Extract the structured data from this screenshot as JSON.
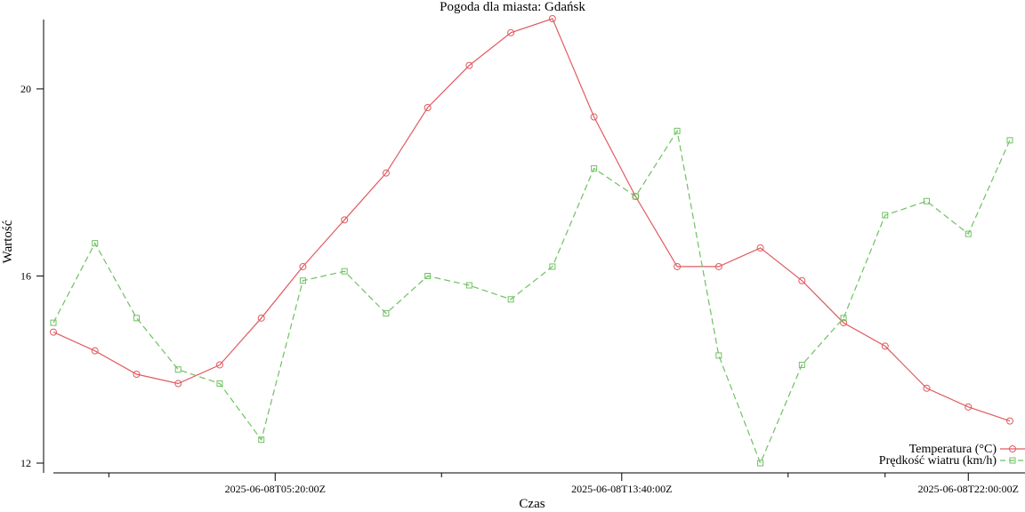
{
  "chart_data": {
    "type": "line",
    "title": "Pogoda dla miasta: Gdańsk",
    "xlabel": "Czas",
    "ylabel": "Wartość",
    "ylim": [
      12,
      21.5
    ],
    "yticks": [
      12,
      16,
      20
    ],
    "xtick_labels": [
      "2025-06-08T05:20:00Z",
      "2025-06-08T13:40:00Z",
      "2025-06-08T22:00:00Z"
    ],
    "grid": false,
    "legend_position": "bottom-right",
    "x": [
      "2025-06-08T00:00:00Z",
      "2025-06-08T01:00:00Z",
      "2025-06-08T02:00:00Z",
      "2025-06-08T03:00:00Z",
      "2025-06-08T04:00:00Z",
      "2025-06-08T05:00:00Z",
      "2025-06-08T06:00:00Z",
      "2025-06-08T07:00:00Z",
      "2025-06-08T08:00:00Z",
      "2025-06-08T09:00:00Z",
      "2025-06-08T10:00:00Z",
      "2025-06-08T11:00:00Z",
      "2025-06-08T12:00:00Z",
      "2025-06-08T13:00:00Z",
      "2025-06-08T14:00:00Z",
      "2025-06-08T15:00:00Z",
      "2025-06-08T16:00:00Z",
      "2025-06-08T17:00:00Z",
      "2025-06-08T18:00:00Z",
      "2025-06-08T19:00:00Z",
      "2025-06-08T20:00:00Z",
      "2025-06-08T21:00:00Z",
      "2025-06-08T22:00:00Z",
      "2025-06-08T23:00:00Z"
    ],
    "series": [
      {
        "name": "Temperatura (°C)",
        "color": "#e05a5f",
        "marker": "circle",
        "dash": "solid",
        "values": [
          14.8,
          14.4,
          13.9,
          13.7,
          14.1,
          15.1,
          16.2,
          17.2,
          18.2,
          19.6,
          20.5,
          21.2,
          21.5,
          19.4,
          17.7,
          16.2,
          16.2,
          16.6,
          15.9,
          15.0,
          14.5,
          13.6,
          13.2,
          12.9
        ]
      },
      {
        "name": "Prędkość wiatru (km/h)",
        "color": "#6fc162",
        "marker": "square",
        "dash": "dashed",
        "values": [
          15.0,
          16.7,
          15.1,
          14.0,
          13.7,
          12.5,
          15.9,
          16.1,
          15.2,
          16.0,
          15.8,
          15.5,
          16.2,
          18.3,
          17.7,
          19.1,
          14.3,
          12.0,
          14.1,
          15.1,
          17.3,
          17.6,
          16.9,
          18.9
        ]
      }
    ]
  }
}
